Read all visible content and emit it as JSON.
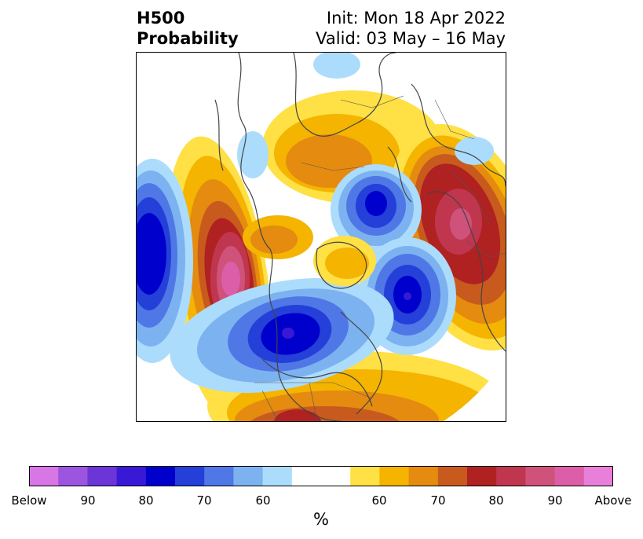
{
  "title": {
    "left_line1": "H500",
    "left_line2": "Probability",
    "right_line1": "Init: Mon 18 Apr 2022",
    "right_line2": "Valid: 03 May – 16 May"
  },
  "colorbar": {
    "unit": "%",
    "tick_labels": [
      "Below",
      "90",
      "80",
      "70",
      "60",
      "60",
      "70",
      "80",
      "90",
      "Above"
    ],
    "colors": [
      "#d876e6",
      "#9b55df",
      "#6b35d8",
      "#3a19d6",
      "#0000cc",
      "#2440d8",
      "#4f77e6",
      "#7db2f0",
      "#acdcfc",
      "#ffffff",
      "#ffe045",
      "#f4b400",
      "#e48b10",
      "#c85a1e",
      "#b02121",
      "#c0364f",
      "#cf527a",
      "#dc5ea8",
      "#e87fd8"
    ]
  }
}
